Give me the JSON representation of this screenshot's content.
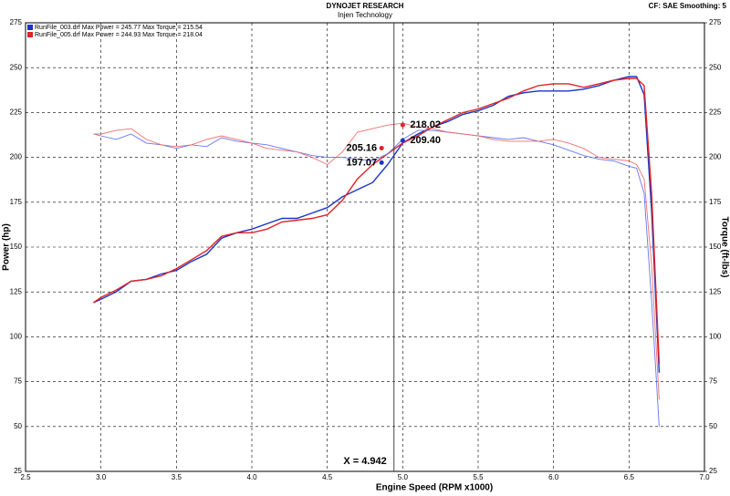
{
  "chart_data": {
    "type": "line",
    "title": "DYNOJET RESEARCH",
    "subtitle": "Injen Technology",
    "settings_text": "CF: SAE  Smoothing: 5",
    "xlabel": "Engine Speed (RPM x1000)",
    "ylabel": "Power (hp)",
    "y2label": "Torque (ft-lbs)",
    "grid": true,
    "legend": [
      {
        "text": "RunFile_003.drf Max Power = 245.77    Max Torque = 215.54",
        "color": "#1a33cc"
      },
      {
        "text": "RunFile_005.drf Max Power = 244.93    Max Torque = 218.04",
        "color": "#e02424"
      }
    ],
    "xlim": [
      2.5,
      7.0
    ],
    "xticks": [
      2.5,
      {
        "value": 3,
        "label": "3.0"
      },
      3.5,
      {
        "value": 4,
        "label": "4.0"
      },
      4.5,
      {
        "value": 5,
        "label": "5.0"
      },
      5.5,
      {
        "value": 6,
        "label": "6.0"
      },
      6.5,
      {
        "value": 7,
        "label": "7.0"
      }
    ],
    "ylim": [
      25,
      275
    ],
    "yticks": [
      25,
      50,
      75,
      100,
      125,
      150,
      175,
      200,
      225,
      250,
      275
    ],
    "y2lim": [
      25,
      275
    ],
    "y2ticks": [
      25,
      50,
      75,
      100,
      125,
      150,
      175,
      200,
      225,
      250,
      275
    ],
    "x": [
      2.95,
      3.0,
      3.1,
      3.2,
      3.3,
      3.4,
      3.5,
      3.6,
      3.7,
      3.8,
      3.9,
      4.0,
      4.1,
      4.2,
      4.3,
      4.4,
      4.5,
      4.6,
      4.7,
      4.8,
      4.9,
      5.0,
      5.1,
      5.2,
      5.3,
      5.4,
      5.5,
      5.6,
      5.7,
      5.8,
      5.9,
      6.0,
      6.1,
      6.2,
      6.3,
      6.4,
      6.5,
      6.55,
      6.6,
      6.65,
      6.7
    ],
    "series": [
      {
        "color": "#1a33cc",
        "width": 1.4,
        "values": [
          119,
          121,
          125,
          131,
          132,
          135,
          137,
          142,
          146,
          155,
          158,
          160,
          163,
          166,
          166,
          169,
          172,
          178,
          182,
          186,
          196,
          208,
          213,
          217,
          220,
          224,
          226,
          229,
          234,
          236,
          237,
          237,
          237,
          238,
          240,
          243,
          245,
          245,
          235,
          170,
          80
        ]
      },
      {
        "color": "#e02424",
        "width": 1.4,
        "values": [
          119,
          122,
          126,
          131,
          132,
          134,
          138,
          143,
          148,
          156,
          158,
          158,
          160,
          164,
          165,
          166,
          168,
          176,
          188,
          196,
          202,
          208,
          212,
          217,
          221,
          225,
          227,
          230,
          233,
          237,
          240,
          241,
          241,
          239,
          241,
          243,
          244,
          244,
          240,
          180,
          85
        ]
      },
      {
        "color": "#6677ee",
        "width": 0.9,
        "axis": "y2",
        "values": [
          213,
          212,
          210,
          213,
          208,
          207,
          205,
          207,
          206,
          211,
          209,
          208,
          207,
          205,
          203,
          201,
          200,
          200,
          199,
          198,
          202,
          210,
          215,
          215,
          214,
          213,
          212,
          211,
          210,
          211,
          209,
          207,
          204,
          201,
          199,
          198,
          195,
          194,
          180,
          120,
          50
        ]
      },
      {
        "color": "#f07070",
        "width": 0.9,
        "axis": "y2",
        "values": [
          213,
          213,
          215,
          216,
          210,
          207,
          206,
          207,
          210,
          212,
          210,
          208,
          205,
          204,
          203,
          200,
          196,
          203,
          214,
          216,
          218,
          219,
          217,
          216,
          214,
          213,
          212,
          210,
          209,
          209,
          209,
          210,
          208,
          205,
          200,
          199,
          198,
          196,
          188,
          140,
          65
        ]
      }
    ],
    "cursor": {
      "value": 4.942,
      "label": "X = 4.942"
    },
    "markers": {
      "x": [
        4.86,
        4.86,
        5.0,
        5.0
      ],
      "values": [
        205.16,
        197.07,
        218.02,
        209.4
      ],
      "value_labels": [
        "205.16",
        "197.07",
        "218.02",
        "209.40"
      ],
      "colors": [
        "#e02424",
        "#1a33cc",
        "#e02424",
        "#1a33cc"
      ]
    }
  }
}
